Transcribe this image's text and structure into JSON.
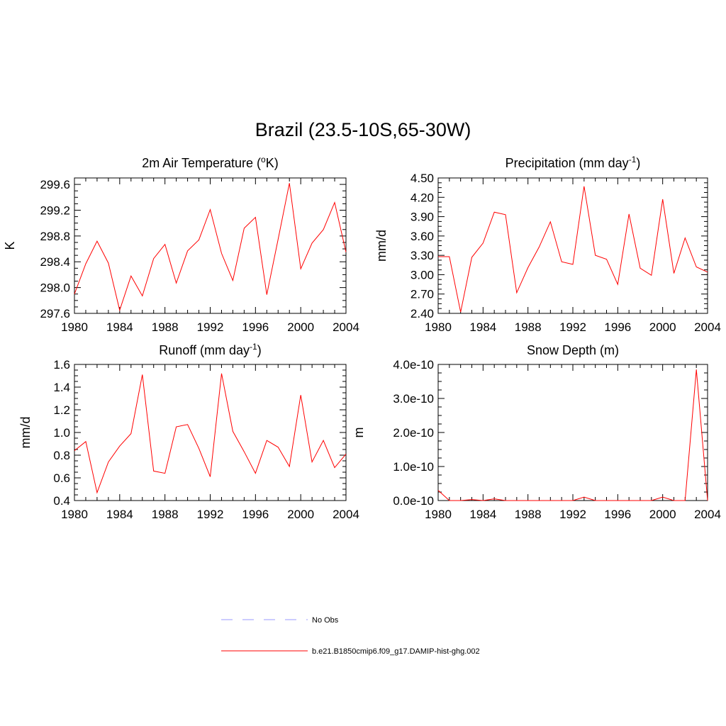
{
  "title": "Brazil (23.5-10S,65-30W)",
  "chart_data": [
    {
      "type": "line",
      "title": "2m Air Temperature (°K)",
      "title_parts": [
        "2m Air Temperature (",
        "o",
        "K)"
      ],
      "ylabel": "K",
      "xlim": [
        1980,
        2004
      ],
      "ylim": [
        297.6,
        299.7
      ],
      "xticks": [
        1980,
        1984,
        1988,
        1992,
        1996,
        2000,
        2004
      ],
      "yticks": [
        "297.6",
        "298.0",
        "298.4",
        "298.8",
        "299.2",
        "299.6"
      ],
      "x": [
        1980,
        1981,
        1982,
        1983,
        1984,
        1985,
        1986,
        1987,
        1988,
        1989,
        1990,
        1991,
        1992,
        1993,
        1994,
        1995,
        1996,
        1997,
        1998,
        1999,
        2000,
        2001,
        2002,
        2003,
        2004
      ],
      "series": [
        {
          "values": [
            297.9,
            298.37,
            298.72,
            298.38,
            297.65,
            298.18,
            297.87,
            298.45,
            298.67,
            298.07,
            298.57,
            298.74,
            299.21,
            298.53,
            298.11,
            298.92,
            299.09,
            297.89,
            298.75,
            299.62,
            298.29,
            298.69,
            298.9,
            299.32,
            298.55
          ]
        }
      ]
    },
    {
      "type": "line",
      "title": "Precipitation (mm day-1)",
      "title_parts": [
        "Precipitation (mm day",
        "-1",
        ")"
      ],
      "ylabel": "mm/d",
      "xlim": [
        1980,
        2004
      ],
      "ylim": [
        2.4,
        4.5
      ],
      "xticks": [
        1980,
        1984,
        1988,
        1992,
        1996,
        2000,
        2004
      ],
      "yticks": [
        "2.40",
        "2.70",
        "3.00",
        "3.30",
        "3.60",
        "3.90",
        "4.20",
        "4.50"
      ],
      "x": [
        1980,
        1981,
        1982,
        1983,
        1984,
        1985,
        1986,
        1987,
        1988,
        1989,
        1990,
        1991,
        1992,
        1993,
        1994,
        1995,
        1996,
        1997,
        1998,
        1999,
        2000,
        2001,
        2002,
        2003,
        2004
      ],
      "series": [
        {
          "values": [
            3.28,
            3.28,
            2.42,
            3.27,
            3.49,
            3.97,
            3.93,
            2.72,
            3.11,
            3.43,
            3.82,
            3.2,
            3.16,
            4.37,
            3.3,
            3.24,
            2.85,
            3.94,
            3.1,
            2.99,
            4.17,
            3.02,
            3.57,
            3.12,
            3.04
          ]
        }
      ]
    },
    {
      "type": "line",
      "title": "Runoff (mm day-1)",
      "title_parts": [
        "Runoff (mm day",
        "-1",
        ")"
      ],
      "ylabel": "mm/d",
      "xlim": [
        1980,
        2004
      ],
      "ylim": [
        0.4,
        1.6
      ],
      "xticks": [
        1980,
        1984,
        1988,
        1992,
        1996,
        2000,
        2004
      ],
      "yticks": [
        "0.4",
        "0.6",
        "0.8",
        "1.0",
        "1.2",
        "1.4",
        "1.6"
      ],
      "x": [
        1980,
        1981,
        1982,
        1983,
        1984,
        1985,
        1986,
        1987,
        1988,
        1989,
        1990,
        1991,
        1992,
        1993,
        1994,
        1995,
        1996,
        1997,
        1998,
        1999,
        2000,
        2001,
        2002,
        2003,
        2004
      ],
      "series": [
        {
          "values": [
            0.84,
            0.92,
            0.47,
            0.74,
            0.88,
            0.99,
            1.51,
            0.66,
            0.64,
            1.05,
            1.07,
            0.86,
            0.61,
            1.52,
            1.01,
            0.83,
            0.64,
            0.93,
            0.87,
            0.7,
            1.33,
            0.74,
            0.93,
            0.69,
            0.81
          ]
        }
      ]
    },
    {
      "type": "line",
      "title": "Snow Depth (m)",
      "title_parts": [
        "Snow Depth (m)",
        "",
        ""
      ],
      "ylabel": "m",
      "xlim": [
        1980,
        2004
      ],
      "ylim": [
        0,
        4e-10
      ],
      "xticks": [
        1980,
        1984,
        1988,
        1992,
        1996,
        2000,
        2004
      ],
      "yticks": [
        "0.0e-10",
        "1.0e-10",
        "2.0e-10",
        "3.0e-10",
        "4.0e-10"
      ],
      "x": [
        1980,
        1981,
        1982,
        1983,
        1984,
        1985,
        1986,
        1987,
        1988,
        1989,
        1990,
        1991,
        1992,
        1993,
        1994,
        1995,
        1996,
        1997,
        1998,
        1999,
        2000,
        2001,
        2002,
        2003,
        2004
      ],
      "series": [
        {
          "values": [
            3e-11,
            0,
            0,
            3e-12,
            0,
            5e-12,
            0,
            0,
            0,
            0,
            0,
            0,
            0,
            1e-11,
            0,
            0,
            0,
            0,
            0,
            0,
            1e-11,
            0,
            0,
            3.85e-10,
            0
          ]
        }
      ]
    }
  ],
  "legend": [
    {
      "label": "No Obs",
      "color": "#9999ff",
      "style": "dashed"
    },
    {
      "label": "b.e21.B1850cmip6.f09_g17.DAMIP-hist-ghg.002",
      "color": "#ff0000",
      "style": "solid"
    }
  ]
}
